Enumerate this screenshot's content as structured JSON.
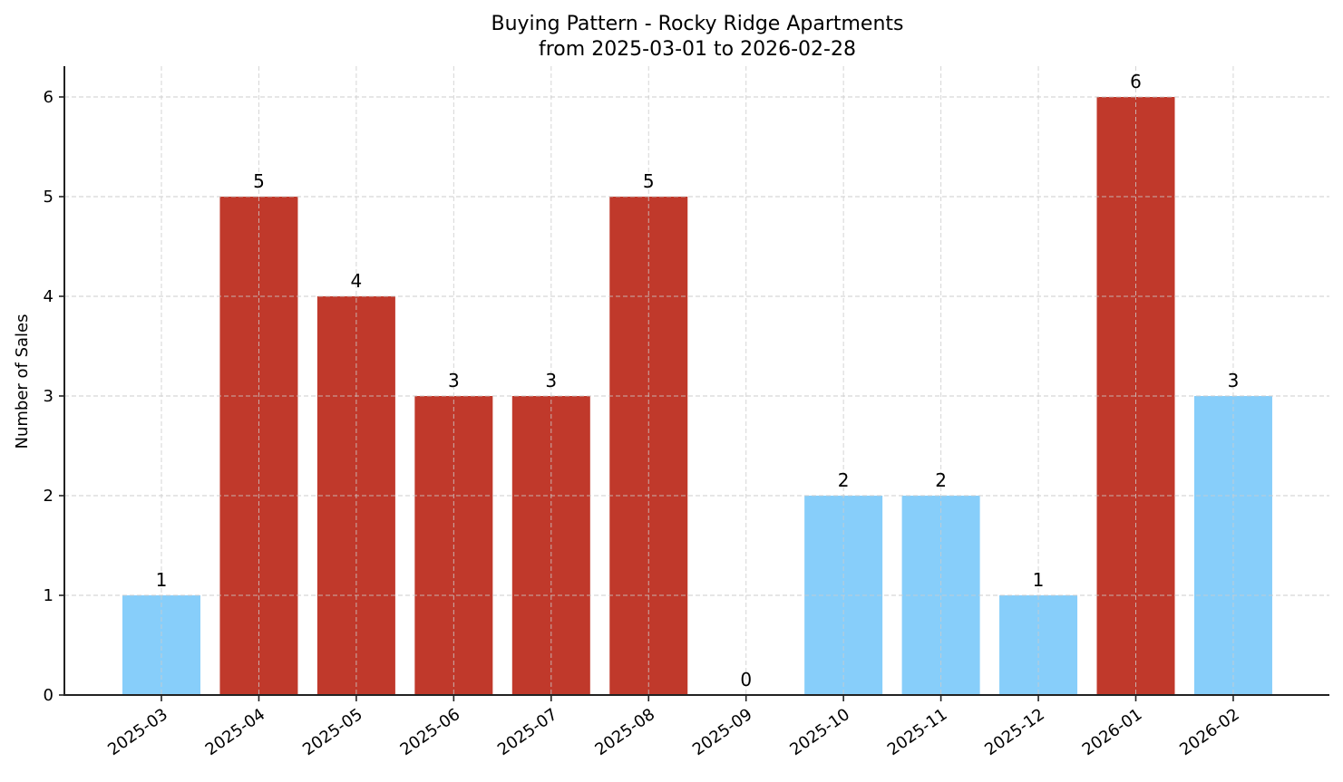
{
  "chart_data": {
    "type": "bar",
    "title": "Buying Pattern - Rocky Ridge Apartments",
    "subtitle": "from 2025-03-01 to 2026-02-28",
    "xlabel": "",
    "ylabel": "Number of Sales",
    "ylim": [
      0,
      6.3
    ],
    "yticks": [
      0,
      1,
      2,
      3,
      4,
      5,
      6
    ],
    "grid": true,
    "legend": null,
    "categories": [
      "2025-03",
      "2025-04",
      "2025-05",
      "2025-06",
      "2025-07",
      "2025-08",
      "2025-09",
      "2025-10",
      "2025-11",
      "2025-12",
      "2026-01",
      "2026-02"
    ],
    "values": [
      1,
      5,
      4,
      3,
      3,
      5,
      0,
      2,
      2,
      1,
      6,
      3
    ],
    "bar_colors": [
      "#87CEFA",
      "#C0392B",
      "#C0392B",
      "#C0392B",
      "#C0392B",
      "#C0392B",
      "#87CEFA",
      "#87CEFA",
      "#87CEFA",
      "#87CEFA",
      "#C0392B",
      "#87CEFA"
    ],
    "data_labels": [
      "1",
      "5",
      "4",
      "3",
      "3",
      "5",
      "0",
      "2",
      "2",
      "1",
      "6",
      "3"
    ]
  },
  "colors": {
    "high": "#C0392B",
    "low": "#87CEFA"
  }
}
